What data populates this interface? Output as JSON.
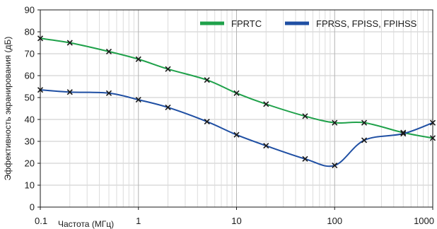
{
  "chart_data": {
    "type": "line",
    "title": "",
    "xlabel": "Частота (МГц)",
    "ylabel": "Эффективность экранирования (дБ)",
    "x_scale": "log",
    "xlim": [
      0.1,
      1000
    ],
    "ylim": [
      0,
      90
    ],
    "x_ticks": [
      {
        "value": 0.1,
        "label": "0.1"
      },
      {
        "value": 1,
        "label": "1"
      },
      {
        "value": 10,
        "label": "10"
      },
      {
        "value": 100,
        "label": "100"
      },
      {
        "value": 1000,
        "label": "1000"
      }
    ],
    "y_ticks": [
      0,
      10,
      20,
      30,
      40,
      50,
      60,
      70,
      80,
      90
    ],
    "grid": true,
    "legend_position": "top-right",
    "series": [
      {
        "name": "FPRTC",
        "color": "#1fa14a",
        "x": [
          0.1,
          0.2,
          0.5,
          1,
          2,
          5,
          10,
          20,
          50,
          100,
          200,
          500,
          1000
        ],
        "y": [
          77,
          75,
          71,
          67.5,
          63,
          58,
          52,
          47,
          41.5,
          38.5,
          38.5,
          34,
          31.5
        ]
      },
      {
        "name": "FPRSS, FPISS, FPIHSS",
        "color": "#1f4fa3",
        "x": [
          0.1,
          0.2,
          0.5,
          1,
          2,
          5,
          10,
          20,
          50,
          100,
          200,
          500,
          1000
        ],
        "y": [
          53.5,
          52.5,
          52,
          49,
          45.5,
          39,
          33,
          28,
          22,
          19,
          30.5,
          33.5,
          38.5
        ]
      }
    ]
  }
}
